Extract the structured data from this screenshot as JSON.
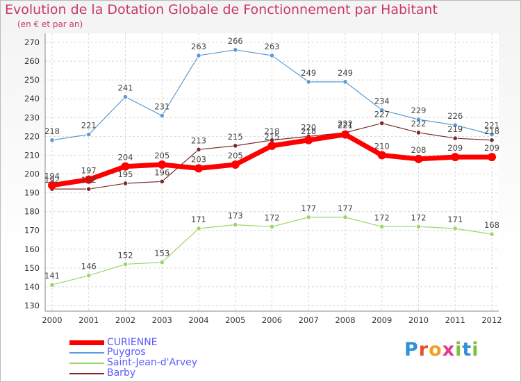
{
  "title": "Evolution de la Dotation Globale de Fonctionnement par Habitant",
  "subtitle": "(en € et par an)",
  "logo_text": "Proxiti",
  "chart_data": {
    "type": "line",
    "title": "Evolution de la Dotation Globale de Fonctionnement par Habitant",
    "subtitle": "(en € et par an)",
    "x": [
      "2000",
      "2001",
      "2002",
      "2003",
      "2004",
      "2005",
      "2006",
      "2007",
      "2008",
      "2009",
      "2010",
      "2011",
      "2012"
    ],
    "ylim": [
      130,
      270
    ],
    "yticks": [
      130,
      140,
      150,
      160,
      170,
      180,
      190,
      200,
      210,
      220,
      230,
      240,
      250,
      260,
      270
    ],
    "grid": true,
    "legend_position": "bottom-left",
    "series": [
      {
        "name": "CURIENNE",
        "color": "#ff0000",
        "values": [
          194,
          197,
          204,
          205,
          203,
          205,
          215,
          218,
          221,
          210,
          208,
          209,
          209
        ]
      },
      {
        "name": "Puygros",
        "color": "#5a9bd5",
        "values": [
          218,
          221,
          241,
          231,
          263,
          266,
          263,
          249,
          249,
          234,
          229,
          226,
          221
        ]
      },
      {
        "name": "Saint-Jean-d'Arvey",
        "color": "#9bd56a",
        "values": [
          141,
          146,
          152,
          153,
          171,
          173,
          172,
          177,
          177,
          172,
          172,
          171,
          168
        ]
      },
      {
        "name": "Barby",
        "color": "#7a2a2a",
        "values": [
          192,
          192,
          195,
          196,
          213,
          215,
          218,
          220,
          222,
          227,
          222,
          219,
          218
        ]
      }
    ]
  }
}
